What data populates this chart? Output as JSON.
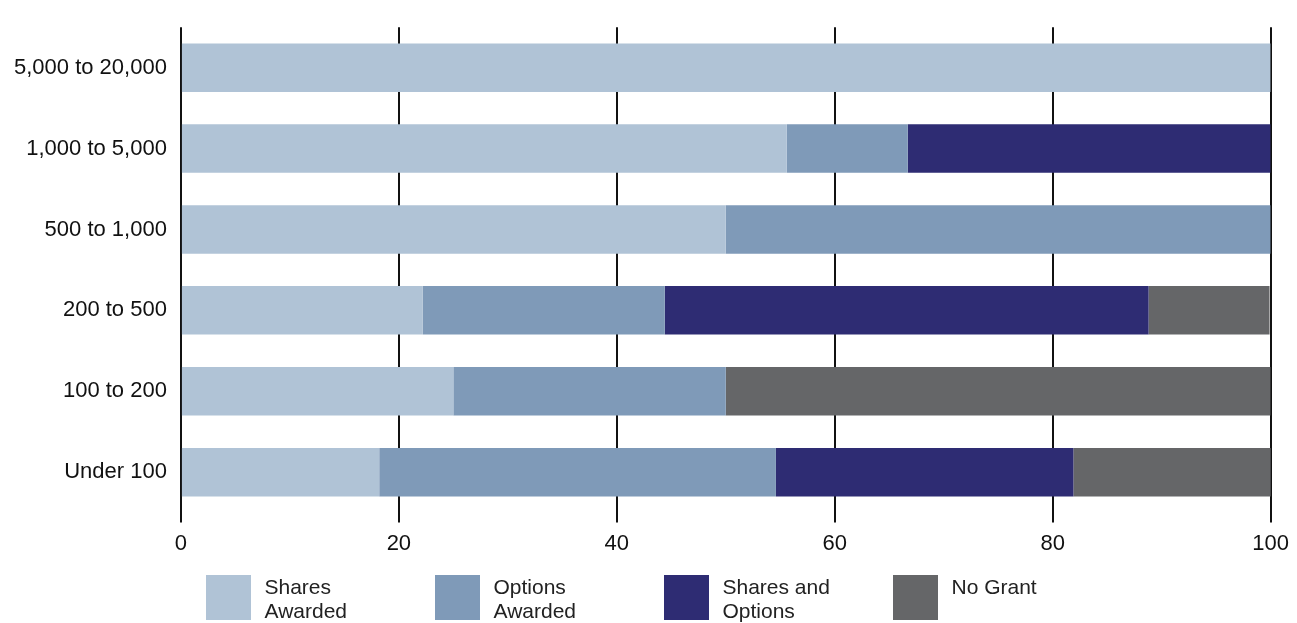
{
  "chart_data": {
    "type": "bar",
    "orientation": "horizontal",
    "stacked": true,
    "categories": [
      "5,000 to 20,000",
      "1,000 to 5,000",
      "500 to 1,000",
      "200 to 500",
      "100 to 200",
      "Under 100"
    ],
    "series": [
      {
        "name": "Shares Awarded",
        "color": "#b0c3d6",
        "values": [
          100,
          55.6,
          50,
          22.2,
          25,
          18.2
        ]
      },
      {
        "name": "Options Awarded",
        "color": "#7f9ab8",
        "values": [
          0,
          11.1,
          50,
          22.2,
          25,
          36.4
        ]
      },
      {
        "name": "Shares and Options",
        "color": "#2e2c73",
        "values": [
          0,
          33.3,
          0,
          44.4,
          0,
          27.3
        ]
      },
      {
        "name": "No Grant",
        "color": "#656668",
        "values": [
          0,
          0,
          0,
          11.1,
          50,
          18.2
        ]
      }
    ],
    "xlim": [
      0,
      100
    ],
    "xticks": [
      0,
      20,
      40,
      60,
      80,
      100
    ],
    "grid": "x",
    "legend": "bottom"
  }
}
